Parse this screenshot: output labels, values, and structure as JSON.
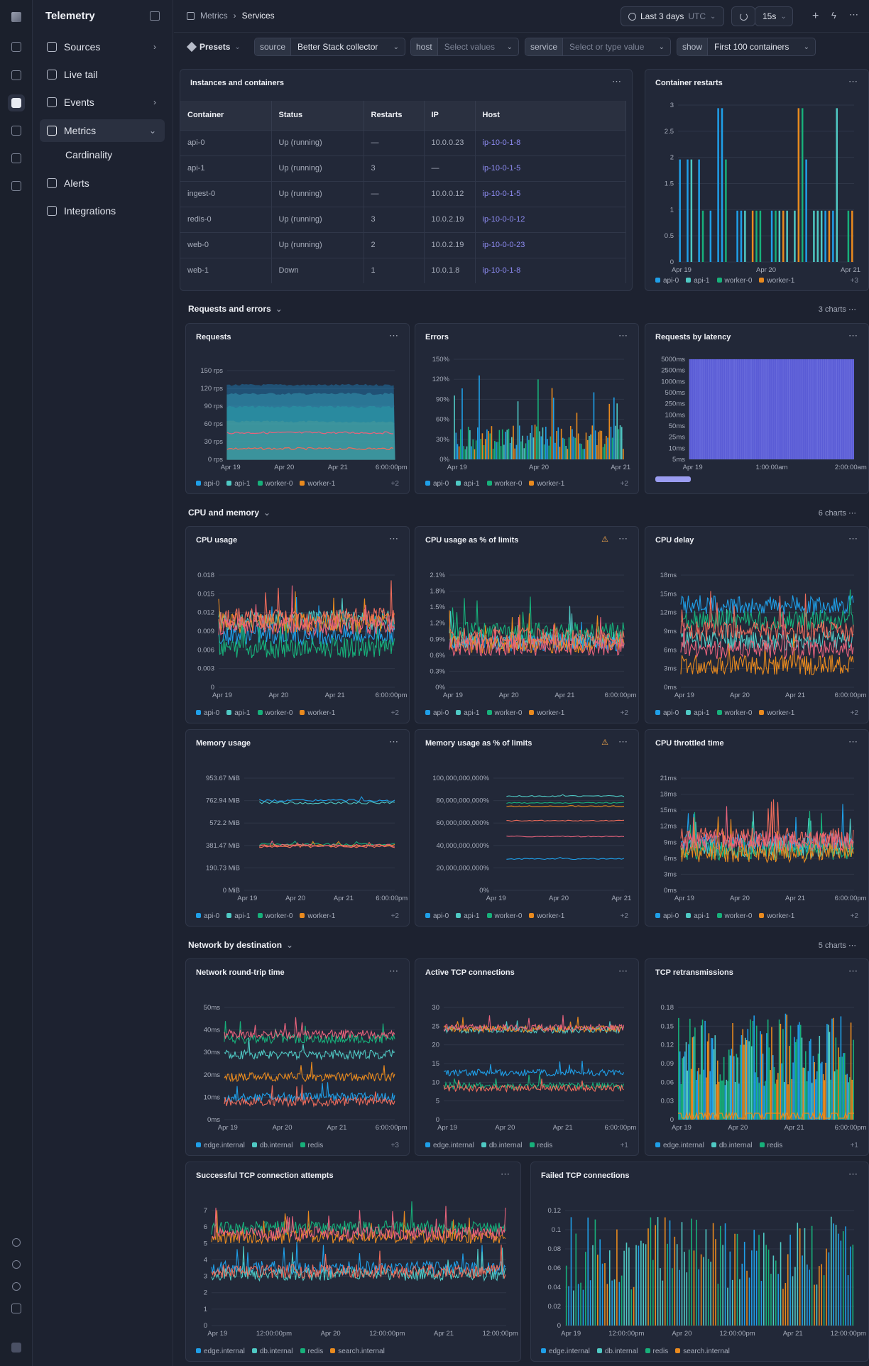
{
  "app": {
    "brand": "Telemetry"
  },
  "sidebar": {
    "items": [
      {
        "label": "Sources",
        "icon": "cube-icon",
        "chevron": "›"
      },
      {
        "label": "Live tail",
        "icon": "terminal-icon",
        "chevron": ""
      },
      {
        "label": "Events",
        "icon": "code-icon",
        "chevron": "›"
      },
      {
        "label": "Metrics",
        "icon": "grid-icon",
        "chevron": "⌄"
      },
      {
        "label": "Cardinality",
        "icon": "",
        "chevron": ""
      },
      {
        "label": "Alerts",
        "icon": "warning-icon",
        "chevron": ""
      },
      {
        "label": "Integrations",
        "icon": "puzzle-icon",
        "chevron": ""
      }
    ]
  },
  "breadcrumb": {
    "parent": "Metrics",
    "sep": "›",
    "current": "Services"
  },
  "topbar": {
    "range": "Last 3 days",
    "tz": "UTC",
    "refresh": "15s"
  },
  "filters": {
    "presets": "Presets",
    "source": {
      "key": "source",
      "value": "Better Stack collector"
    },
    "host": {
      "key": "host",
      "placeholder": "Select values"
    },
    "service": {
      "key": "service",
      "placeholder": "Select or type value"
    },
    "show": {
      "key": "show",
      "value": "First 100 containers"
    }
  },
  "instances": {
    "title": "Instances and containers",
    "columns": [
      "Container",
      "Status",
      "Restarts",
      "IP",
      "Host"
    ],
    "rows": [
      [
        "api-0",
        "Up (running)",
        "—",
        "10.0.0.23",
        "ip-10-0-1-8"
      ],
      [
        "api-1",
        "Up (running)",
        "3",
        "—",
        "ip-10-0-1-5"
      ],
      [
        "ingest-0",
        "Up (running)",
        "—",
        "10.0.0.12",
        "ip-10-0-1-5"
      ],
      [
        "redis-0",
        "Up (running)",
        "3",
        "10.0.2.19",
        "ip-10-0-0-12"
      ],
      [
        "web-0",
        "Up (running)",
        "2",
        "10.0.2.19",
        "ip-10-0-0-23"
      ],
      [
        "web-1",
        "Down",
        "1",
        "10.0.1.8",
        "ip-10-0-1-8"
      ]
    ]
  },
  "sections": {
    "req": {
      "label": "Requests and errors",
      "count": "3 charts"
    },
    "cpu": {
      "label": "CPU and memory",
      "count": "6 charts"
    },
    "net": {
      "label": "Network by destination",
      "count": "5 charts"
    }
  },
  "legend_containers": [
    "api-0",
    "api-1",
    "worker-0",
    "worker-1"
  ],
  "legend_dest": [
    "edge.internal",
    "db.internal",
    "redis",
    "search.internal"
  ],
  "colors": {
    "api-0": "#1f9fe8",
    "api-1": "#4fc9c4",
    "worker-0": "#17b07a",
    "worker-1": "#e98a1e",
    "other1": "#ef6c5b",
    "other2": "#e8637c",
    "hist": "#5a5cd6"
  },
  "chart_data": [
    {
      "id": "restarts",
      "title": "Container restarts",
      "type": "bar",
      "x_ticks": [
        "Apr 19",
        "Apr 20",
        "Apr 21"
      ],
      "y_ticks": [
        "0",
        "0.5",
        "1",
        "1.5",
        "2",
        "2.5",
        "3"
      ],
      "ylim": [
        0,
        3
      ],
      "legend_more": "+3"
    },
    {
      "id": "requests",
      "title": "Requests",
      "type": "area",
      "x_ticks": [
        "Apr 19",
        "Apr 20",
        "Apr 21",
        "6:00:00pm"
      ],
      "y_ticks": [
        "0 rps",
        "30 rps",
        "60 rps",
        "90 rps",
        "120 rps",
        "150 rps"
      ],
      "ylim": [
        0,
        150
      ],
      "series": [
        {
          "name": "api-0",
          "values": [
            125
          ]
        },
        {
          "name": "api-1",
          "values": [
            110
          ]
        },
        {
          "name": "worker-0",
          "values": [
            88
          ]
        },
        {
          "name": "worker-1",
          "values": [
            63
          ]
        }
      ],
      "legend_more": "+2"
    },
    {
      "id": "errors",
      "title": "Errors",
      "type": "bar",
      "x_ticks": [
        "Apr 19",
        "Apr 20",
        "Apr 21"
      ],
      "y_ticks": [
        "0%",
        "30%",
        "60%",
        "90%",
        "120%",
        "150%"
      ],
      "ylim": [
        0,
        150
      ],
      "legend_more": "+2"
    },
    {
      "id": "latency",
      "title": "Requests by latency",
      "type": "heatmap",
      "x_ticks": [
        "Apr 19",
        "1:00:00am",
        "2:00:00am"
      ],
      "y_ticks": [
        "5ms",
        "10ms",
        "25ms",
        "50ms",
        "100ms",
        "250ms",
        "500ms",
        "1000ms",
        "2500ms",
        "5000ms"
      ]
    },
    {
      "id": "cpu",
      "title": "CPU usage",
      "type": "line",
      "x_ticks": [
        "Apr 19",
        "Apr 20",
        "Apr 21",
        "6:00:00pm"
      ],
      "y_ticks": [
        "0",
        "0.003",
        "0.006",
        "0.009",
        "0.012",
        "0.015",
        "0.018"
      ],
      "ylim": [
        0,
        0.018
      ],
      "legend_more": "+2"
    },
    {
      "id": "cpupct",
      "title": "CPU usage as % of limits",
      "type": "line",
      "x_ticks": [
        "Apr 19",
        "Apr 20",
        "Apr 21",
        "6:00:00pm"
      ],
      "y_ticks": [
        "0%",
        "0.3%",
        "0.6%",
        "0.9%",
        "1.2%",
        "1.5%",
        "1.8%",
        "2.1%"
      ],
      "ylim": [
        0,
        2.1
      ],
      "legend_more": "+2"
    },
    {
      "id": "cpudelay",
      "title": "CPU delay",
      "type": "line",
      "x_ticks": [
        "Apr 19",
        "Apr 20",
        "Apr 21",
        "6:00:00pm"
      ],
      "y_ticks": [
        "0ms",
        "3ms",
        "6ms",
        "9ms",
        "12ms",
        "15ms",
        "18ms"
      ],
      "ylim": [
        0,
        18
      ],
      "legend_more": "+2"
    },
    {
      "id": "mem",
      "title": "Memory usage",
      "type": "line",
      "x_ticks": [
        "Apr 19",
        "Apr 20",
        "Apr 21",
        "6:00:00pm"
      ],
      "y_ticks": [
        "0 MiB",
        "190.73 MiB",
        "381.47 MiB",
        "572.2 MiB",
        "762.94 MiB",
        "953.67 MiB"
      ],
      "ylim": [
        0,
        953.67
      ],
      "legend_more": "+2"
    },
    {
      "id": "mempct",
      "title": "Memory usage as % of limits",
      "type": "line",
      "x_ticks": [
        "Apr 19",
        "Apr 20",
        "Apr 21"
      ],
      "y_ticks": [
        "0%",
        "20,000,000,000%",
        "40,000,000,000%",
        "60,000,000,000%",
        "80,000,000,000%",
        "100,000,000,000%"
      ],
      "ylim": [
        0,
        100000000000
      ],
      "legend_more": "+2"
    },
    {
      "id": "throttle",
      "title": "CPU throttled time",
      "type": "line",
      "x_ticks": [
        "Apr 19",
        "Apr 20",
        "Apr 21",
        "6:00:00pm"
      ],
      "y_ticks": [
        "0ms",
        "3ms",
        "6ms",
        "9ms",
        "12ms",
        "15ms",
        "18ms",
        "21ms"
      ],
      "ylim": [
        0,
        21
      ],
      "legend_more": "+2"
    },
    {
      "id": "rtt",
      "title": "Network round-trip time",
      "type": "line",
      "x_ticks": [
        "Apr 19",
        "Apr 20",
        "Apr 21",
        "6:00:00pm"
      ],
      "y_ticks": [
        "0ms",
        "10ms",
        "20ms",
        "30ms",
        "40ms",
        "50ms"
      ],
      "ylim": [
        0,
        50
      ],
      "legend_more": "+3"
    },
    {
      "id": "tcp",
      "title": "Active TCP connections",
      "type": "line",
      "x_ticks": [
        "Apr 19",
        "Apr 20",
        "Apr 21",
        "6:00:00pm"
      ],
      "y_ticks": [
        "0",
        "5",
        "10",
        "15",
        "20",
        "25",
        "30"
      ],
      "ylim": [
        0,
        30
      ],
      "legend_more": "+1"
    },
    {
      "id": "retrans",
      "title": "TCP retransmissions",
      "type": "bar",
      "x_ticks": [
        "Apr 19",
        "Apr 20",
        "Apr 21",
        "6:00:00pm"
      ],
      "y_ticks": [
        "0",
        "0.03",
        "0.06",
        "0.09",
        "0.12",
        "0.15",
        "0.18"
      ],
      "ylim": [
        0,
        0.18
      ],
      "legend_more": "+1"
    },
    {
      "id": "succ",
      "title": "Successful TCP connection attempts",
      "type": "line",
      "x_ticks": [
        "Apr 19",
        "12:00:00pm",
        "Apr 20",
        "12:00:00pm",
        "Apr 21",
        "12:00:00pm"
      ],
      "y_ticks": [
        "0",
        "1",
        "2",
        "3",
        "4",
        "5",
        "6",
        "7"
      ],
      "ylim": [
        0,
        7
      ],
      "legend_more": ""
    },
    {
      "id": "failed",
      "title": "Failed TCP connections",
      "type": "bar",
      "x_ticks": [
        "Apr 19",
        "12:00:00pm",
        "Apr 20",
        "12:00:00pm",
        "Apr 21",
        "12:00:00pm"
      ],
      "y_ticks": [
        "0",
        "0.02",
        "0.04",
        "0.06",
        "0.08",
        "0.1",
        "0.12"
      ],
      "ylim": [
        0,
        0.12
      ],
      "legend_more": ""
    }
  ]
}
